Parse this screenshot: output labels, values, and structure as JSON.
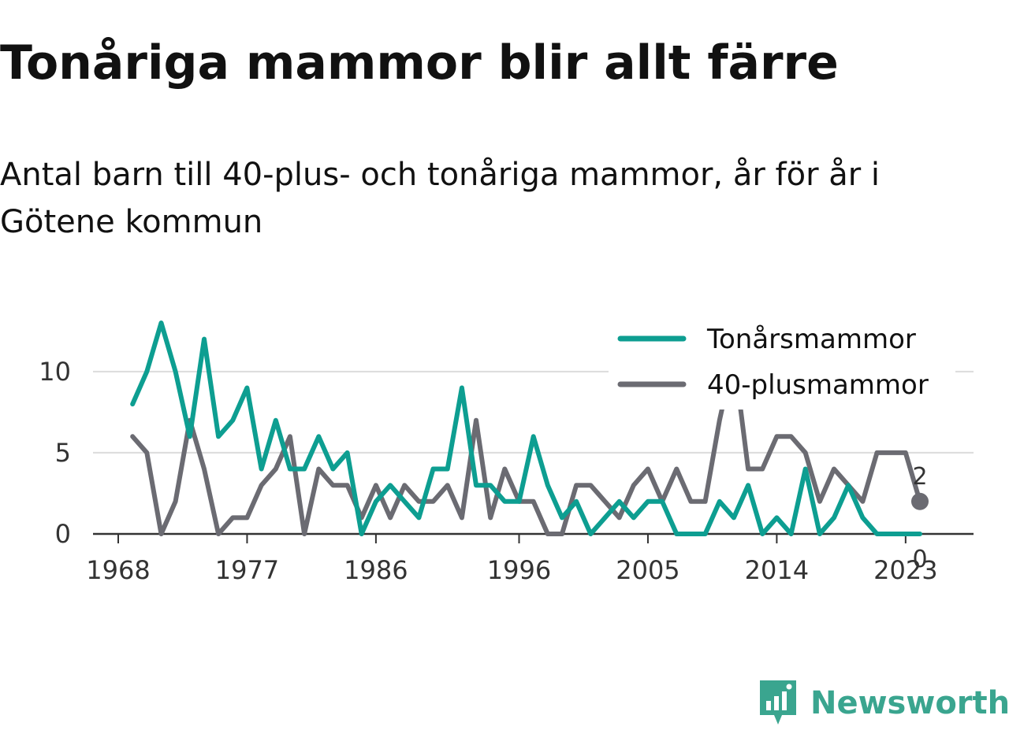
{
  "title": "Tonåriga mammor blir allt färre",
  "subtitle": "Antal barn till 40-plus- och tonåriga mammor, år för år i Götene kommun",
  "brand": {
    "name": "Newsworthy",
    "logo_icon": "bar-chart-speech-bubble-icon",
    "color": "#3aa58f"
  },
  "chart_data": {
    "type": "line",
    "x": [
      1969,
      1970,
      1971,
      1972,
      1973,
      1974,
      1975,
      1976,
      1977,
      1978,
      1979,
      1980,
      1981,
      1982,
      1983,
      1984,
      1985,
      1986,
      1987,
      1988,
      1989,
      1990,
      1991,
      1992,
      1993,
      1994,
      1995,
      1996,
      1997,
      1998,
      1999,
      2000,
      2001,
      2002,
      2003,
      2004,
      2005,
      2006,
      2007,
      2008,
      2009,
      2010,
      2011,
      2012,
      2013,
      2014,
      2015,
      2016,
      2017,
      2018,
      2019,
      2020,
      2021,
      2022,
      2023,
      2024
    ],
    "series": [
      {
        "name": "Tonårsmammor",
        "color": "#0d9e91",
        "values": [
          8,
          10,
          13,
          10,
          6,
          12,
          6,
          7,
          9,
          4,
          7,
          4,
          4,
          6,
          4,
          5,
          0,
          2,
          3,
          2,
          1,
          4,
          4,
          9,
          3,
          3,
          2,
          2,
          6,
          3,
          1,
          2,
          0,
          1,
          2,
          1,
          2,
          2,
          0,
          0,
          0,
          2,
          1,
          3,
          0,
          1,
          0,
          4,
          0,
          1,
          3,
          1,
          0,
          0,
          0,
          0
        ]
      },
      {
        "name": "40-plusmammor",
        "color": "#6b6b72",
        "values": [
          6,
          5,
          0,
          2,
          7,
          4,
          0,
          1,
          1,
          3,
          4,
          6,
          0,
          4,
          3,
          3,
          1,
          3,
          1,
          3,
          2,
          2,
          3,
          1,
          7,
          1,
          4,
          2,
          2,
          0,
          0,
          3,
          3,
          2,
          1,
          3,
          4,
          2,
          4,
          2,
          2,
          7,
          11,
          4,
          4,
          6,
          6,
          5,
          2,
          4,
          3,
          2,
          5,
          5,
          5,
          2
        ]
      }
    ],
    "xticks": [
      1968,
      1977,
      1986,
      1996,
      2005,
      2014,
      2023
    ],
    "yticks": [
      0,
      5,
      10
    ],
    "xlim": [
      1968,
      2024
    ],
    "ylim": [
      0,
      13
    ],
    "grid": "horizontal",
    "legend": "top-right",
    "end_labels": [
      {
        "series": "40-plusmammor",
        "text": "2"
      },
      {
        "series": "Tonårsmammor",
        "text": "0"
      }
    ]
  }
}
